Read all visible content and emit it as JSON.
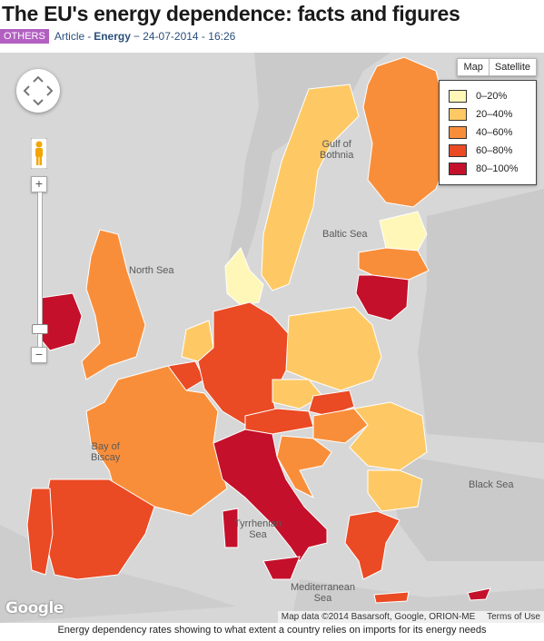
{
  "header": {
    "title": "The EU's energy dependence: facts and figures",
    "badge": "OTHERS",
    "type": "Article",
    "separator": "-",
    "category": "Energy",
    "date": "− 24-07-2014 - 16:26"
  },
  "map_controls": {
    "map_label": "Map",
    "satellite_label": "Satellite",
    "zoom_in": "+",
    "zoom_out": "−"
  },
  "legend": {
    "items": [
      {
        "label": "0–20%",
        "color": "#fef7b8"
      },
      {
        "label": "20–40%",
        "color": "#fec964"
      },
      {
        "label": "40–60%",
        "color": "#f98e3a"
      },
      {
        "label": "60–80%",
        "color": "#ea4a24"
      },
      {
        "label": "80–100%",
        "color": "#c4102a"
      }
    ]
  },
  "sea_labels": {
    "gulf": "Gulf of\nBothnia",
    "baltic": "Baltic Sea",
    "north": "North Sea",
    "biscay": "Bay of\nBiscay",
    "black": "Black Sea",
    "tyrrhenian": "Tyrrhenian\nSea",
    "mediterranean": "Mediterranean\nSea"
  },
  "countries": [
    {
      "name": "Norway",
      "color": "#c9c9c9"
    },
    {
      "name": "Sweden",
      "band": "20–40%",
      "color": "#fec964"
    },
    {
      "name": "Finland",
      "band": "40–60%",
      "color": "#f98e3a"
    },
    {
      "name": "Estonia",
      "band": "0–20%",
      "color": "#fef7b8"
    },
    {
      "name": "Latvia",
      "band": "40–60%",
      "color": "#f98e3a"
    },
    {
      "name": "Lithuania",
      "band": "80–100%",
      "color": "#c4102a"
    },
    {
      "name": "Denmark",
      "band": "0–20%",
      "color": "#fef7b8"
    },
    {
      "name": "United Kingdom",
      "band": "40–60%",
      "color": "#f98e3a"
    },
    {
      "name": "Ireland",
      "band": "80–100%",
      "color": "#c4102a"
    },
    {
      "name": "Netherlands",
      "band": "20–40%",
      "color": "#fec964"
    },
    {
      "name": "Belgium",
      "band": "60–80%",
      "color": "#ea4a24"
    },
    {
      "name": "Luxembourg",
      "band": "80–100%",
      "color": "#c4102a"
    },
    {
      "name": "Germany",
      "band": "60–80%",
      "color": "#ea4a24"
    },
    {
      "name": "Poland",
      "band": "20–40%",
      "color": "#fec964"
    },
    {
      "name": "Czech Republic",
      "band": "20–40%",
      "color": "#fec964"
    },
    {
      "name": "Slovakia",
      "band": "60–80%",
      "color": "#ea4a24"
    },
    {
      "name": "Austria",
      "band": "60–80%",
      "color": "#ea4a24"
    },
    {
      "name": "Hungary",
      "band": "40–60%",
      "color": "#f98e3a"
    },
    {
      "name": "Slovenia",
      "band": "40–60%",
      "color": "#f98e3a"
    },
    {
      "name": "Croatia",
      "band": "40–60%",
      "color": "#f98e3a"
    },
    {
      "name": "Romania",
      "band": "20–40%",
      "color": "#fec964"
    },
    {
      "name": "Bulgaria",
      "band": "20–40%",
      "color": "#fec964"
    },
    {
      "name": "France",
      "band": "40–60%",
      "color": "#f98e3a"
    },
    {
      "name": "Spain",
      "band": "60–80%",
      "color": "#ea4a24"
    },
    {
      "name": "Portugal",
      "band": "60–80%",
      "color": "#ea4a24"
    },
    {
      "name": "Italy",
      "band": "80–100%",
      "color": "#c4102a"
    },
    {
      "name": "Greece",
      "band": "60–80%",
      "color": "#ea4a24"
    },
    {
      "name": "Cyprus",
      "band": "80–100%",
      "color": "#c4102a"
    },
    {
      "name": "Malta",
      "band": "80–100%",
      "color": "#c4102a"
    }
  ],
  "footer": {
    "google": "Google",
    "attribution": "Map data ©2014 Basarsoft, Google, ORION-ME",
    "terms": "Terms of Use",
    "caption": "Energy dependency rates showing to what extent a country relies on imports for its energy needs"
  }
}
